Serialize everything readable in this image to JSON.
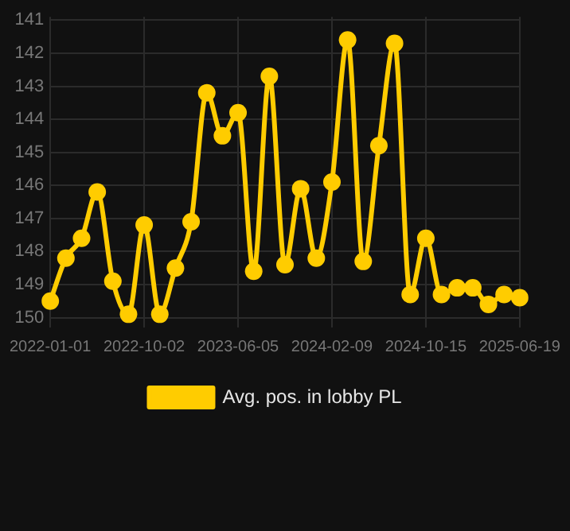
{
  "chart_data": {
    "type": "line",
    "categories": [
      "2022-01-01",
      null,
      null,
      null,
      null,
      null,
      "2022-10-02",
      null,
      null,
      null,
      null,
      null,
      "2023-06-05",
      null,
      null,
      null,
      null,
      null,
      "2024-02-09",
      null,
      null,
      null,
      null,
      null,
      "2024-10-15",
      null,
      null,
      null,
      null,
      null,
      "2025-06-19"
    ],
    "series": [
      {
        "name": "Avg. pos. in lobby PL",
        "color": "#ffcc00",
        "values": [
          149.5,
          148.2,
          147.6,
          146.2,
          148.9,
          149.9,
          147.2,
          149.9,
          148.5,
          147.1,
          143.2,
          144.5,
          143.8,
          148.6,
          142.7,
          148.4,
          146.1,
          148.2,
          145.9,
          141.6,
          148.3,
          144.8,
          141.7,
          149.3,
          147.6,
          149.3,
          149.1,
          149.1,
          149.6,
          149.3,
          149.4
        ]
      }
    ],
    "ylim": [
      150.3,
      140.9
    ],
    "yticks": [
      141,
      142,
      143,
      144,
      145,
      146,
      147,
      148,
      149,
      150
    ],
    "grid": true,
    "legend": "bottom",
    "marker": "circle",
    "line_style": "solid"
  }
}
